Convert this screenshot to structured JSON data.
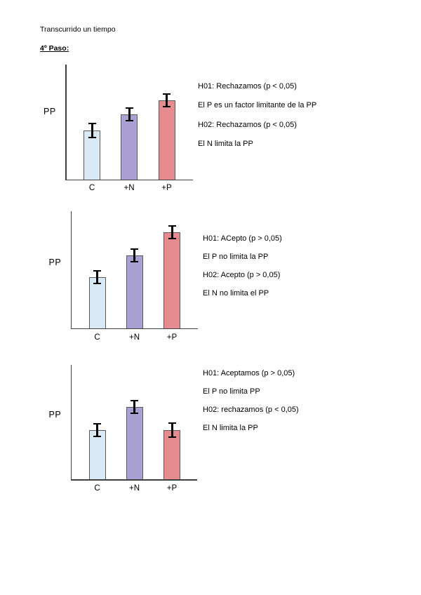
{
  "header": {
    "line1": "Transcurrido un tiempo",
    "step": "4º Paso:"
  },
  "colors": {
    "bars": [
      "#d9e8f5",
      "#aba0d3",
      "#e68c90"
    ],
    "bar_border": "#595959",
    "axis": "#3f3f3f",
    "error_bar": "#000000"
  },
  "chart_data": [
    {
      "type": "bar",
      "title": "",
      "ylabel": "PP",
      "xlabel": "",
      "categories": [
        "C",
        "+N",
        "+P"
      ],
      "values": [
        70,
        93,
        113
      ],
      "errors": [
        11,
        10,
        10
      ],
      "ylim": [
        0,
        163
      ],
      "grid": false,
      "legend": false,
      "annotations": [
        "H01: Rechazamos (p < 0,05)",
        "El P es un factor limitante de la PP",
        "H02: Rechazamos (p < 0,05)",
        "El N limita la PP"
      ]
    },
    {
      "type": "bar",
      "title": "",
      "ylabel": "PP",
      "xlabel": "",
      "categories": [
        "C",
        "+N",
        "+P"
      ],
      "values": [
        73,
        104,
        137
      ],
      "errors": [
        10,
        10,
        10
      ],
      "ylim": [
        0,
        166
      ],
      "grid": false,
      "legend": false,
      "annotations": [
        "H01: ACepto (p > 0,05)",
        "El P no limita la PP",
        "H02: Acepto (p > 0,05)",
        "El N no limita el PP"
      ]
    },
    {
      "type": "bar",
      "title": "",
      "ylabel": "PP",
      "xlabel": "",
      "categories": [
        "C",
        "+N",
        "+P"
      ],
      "values": [
        70,
        103,
        70
      ],
      "errors": [
        10,
        10,
        11
      ],
      "ylim": [
        0,
        163
      ],
      "grid": false,
      "legend": false,
      "annotations": [
        "H01: Aceptamos (p > 0,05)",
        "El P no limita PP",
        "H02: rechazamos (p < 0,05)",
        "El N limita la PP"
      ]
    }
  ]
}
